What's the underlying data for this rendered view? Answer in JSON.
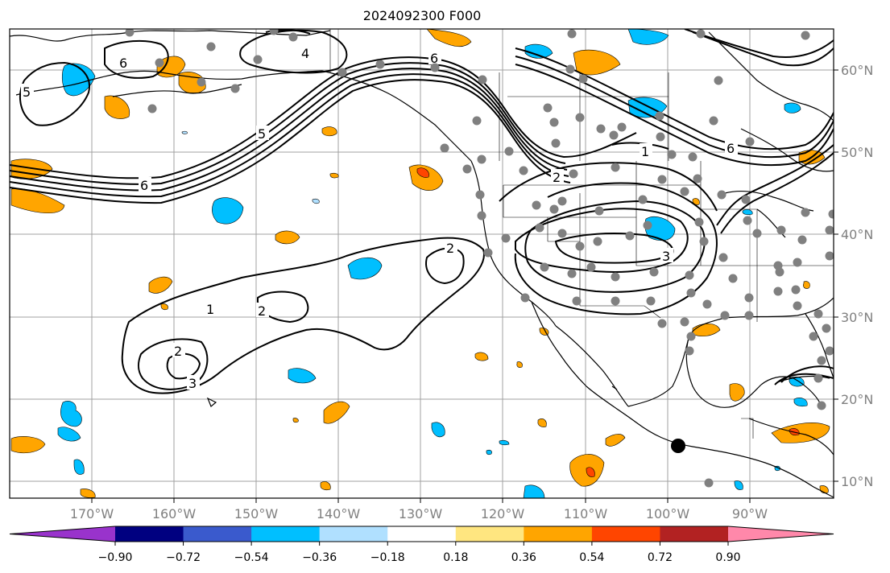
{
  "title": "2024092300 F000",
  "map": {
    "lon_labels": [
      "170°W",
      "160°W",
      "150°W",
      "140°W",
      "130°W",
      "120°W",
      "110°W",
      "100°W",
      "90°W"
    ],
    "lat_labels": [
      "60°N",
      "50°N",
      "40°N",
      "30°N",
      "20°N",
      "10°N"
    ],
    "grid_color": "#a0a0a0",
    "contour_labels": [
      "1",
      "2",
      "3",
      "4",
      "5",
      "6"
    ],
    "station_marker_color": "#808080",
    "highlight_marker_color": "#000000"
  },
  "colorbar": {
    "tick_labels": [
      "−0.90",
      "−0.72",
      "−0.54",
      "−0.36",
      "−0.18",
      "0.18",
      "0.36",
      "0.54",
      "0.72",
      "0.90"
    ],
    "colors": [
      "#9933cc",
      "#000080",
      "#3a5acd",
      "#00bfff",
      "#b0e0ff",
      "#ffffff",
      "#ffe680",
      "#ffa500",
      "#ff4500",
      "#b22222",
      "#ff88aa"
    ]
  }
}
